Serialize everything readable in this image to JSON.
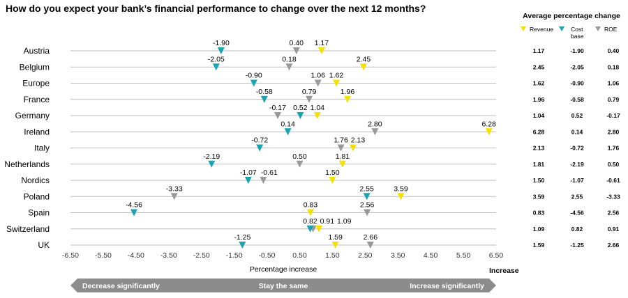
{
  "title": "How do you expect your bank’s financial performance to change over the next 12 months?",
  "chart_data": {
    "type": "scatter",
    "marker": "down-triangle",
    "categories": [
      "Austria",
      "Belgium",
      "Europe",
      "France",
      "Germany",
      "Ireland",
      "Italy",
      "Netherlands",
      "Nordics",
      "Poland",
      "Spain",
      "Switzerland",
      "UK"
    ],
    "series": [
      {
        "name": "Revenue",
        "color": "#f5e100",
        "values": [
          1.17,
          2.45,
          1.62,
          1.96,
          1.04,
          6.28,
          2.13,
          1.81,
          1.5,
          3.59,
          0.83,
          1.09,
          1.59
        ]
      },
      {
        "name": "Cost base",
        "color": "#1aa3b0",
        "values": [
          -1.9,
          -2.05,
          -0.9,
          -0.58,
          0.52,
          0.14,
          -0.72,
          -2.19,
          -1.07,
          2.55,
          -4.56,
          0.82,
          -1.25
        ]
      },
      {
        "name": "ROE",
        "color": "#999999",
        "values": [
          0.4,
          0.18,
          1.06,
          0.79,
          -0.17,
          2.8,
          1.76,
          0.5,
          -0.61,
          -3.33,
          2.56,
          0.91,
          2.66
        ]
      }
    ],
    "xlim": [
      -6.5,
      6.5
    ],
    "xticks": [
      "-6.50",
      "-5.50",
      "-4.50",
      "-3.50",
      "-2.50",
      "-1.50",
      "-0.50",
      "0.50",
      "1.50",
      "2.50",
      "3.50",
      "4.50",
      "5.50",
      "6.50"
    ],
    "xlabel": "Percentage increase",
    "x_end_label": "Increase",
    "legend": {
      "title": "Average percentage change",
      "items": [
        {
          "label": "Revenue",
          "color": "#f5e100"
        },
        {
          "label": "Cost base",
          "color": "#1aa3b0"
        },
        {
          "label": "ROE",
          "color": "#999999"
        }
      ],
      "placement": "right"
    },
    "table_values": {
      "Revenue": [
        "1.17",
        "2.45",
        "1.62",
        "1.96",
        "1.04",
        "6.28",
        "2.13",
        "1.81",
        "1.50",
        "3.59",
        "0.83",
        "1.09",
        "1.59"
      ],
      "Cost base": [
        "-1.90",
        "-2.05",
        "-0.90",
        "-0.58",
        "0.52",
        "0.14",
        "-0.72",
        "-2.19",
        "-1.07",
        "2.55",
        "-4.56",
        "0.82",
        "-1.25"
      ],
      "ROE": [
        "0.40",
        "0.18",
        "1.06",
        "0.79",
        "-0.17",
        "2.80",
        "1.76",
        "0.50",
        "-0.61",
        "-3.33",
        "2.56",
        "0.91",
        "2.66"
      ]
    },
    "scale_arrow": {
      "left": "Decrease significantly",
      "middle": "Stay the same",
      "right": "Increase significantly",
      "color": "#8c8c8c"
    }
  }
}
